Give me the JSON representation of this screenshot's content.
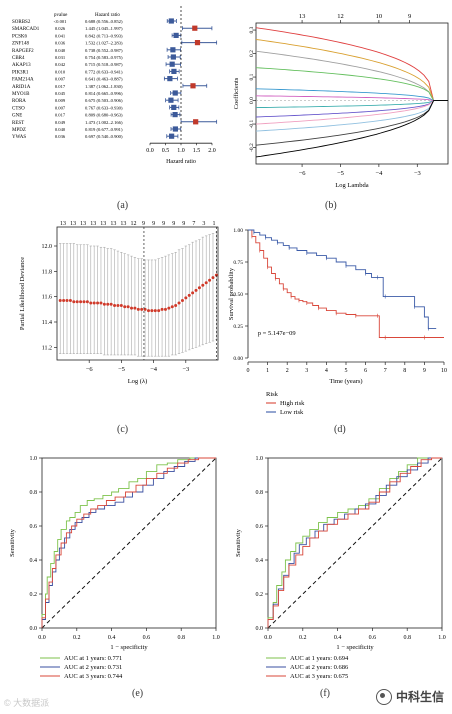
{
  "panels": {
    "a": "(a)",
    "b": "(b)",
    "c": "(c)",
    "d": "(d)",
    "e": "(e)",
    "f": "(f)"
  },
  "watermark_left": "© 大数据派",
  "watermark_right": "中科生信",
  "chart_data": [
    {
      "id": "a",
      "type": "forest",
      "col_headers": {
        "pvalue": "pvalue",
        "hr": "Hazard ratio"
      },
      "xlabel": "Hazard ratio",
      "xlim": [
        0,
        2.0
      ],
      "xticks": [
        "0.0",
        "0.5",
        "1.0",
        "1.5",
        "2.0"
      ],
      "rows": [
        {
          "gene": "SORBS2",
          "p": "<0.001",
          "hr_text": "0.688 (0.556–0.852)",
          "hr": 0.688,
          "lo": 0.556,
          "hi": 0.852
        },
        {
          "gene": "SMARCAD1",
          "p": "0.026",
          "hr_text": "1.445 (1.045–1.997)",
          "hr": 1.445,
          "lo": 1.045,
          "hi": 1.997
        },
        {
          "gene": "PCSK6",
          "p": "0.041",
          "hr_text": "0.842 (0.713–0.993)",
          "hr": 0.842,
          "lo": 0.713,
          "hi": 0.993
        },
        {
          "gene": "ZNF148",
          "p": "0.036",
          "hr_text": "1.532 (1.027–2.283)",
          "hr": 1.532,
          "lo": 1.027,
          "hi": 2.283
        },
        {
          "gene": "RAPGEF2",
          "p": "0.040",
          "hr_text": "0.738 (0.552–0.987)",
          "hr": 0.738,
          "lo": 0.552,
          "hi": 0.987
        },
        {
          "gene": "CBR4",
          "p": "0.031",
          "hr_text": "0.754 (0.583–0.975)",
          "hr": 0.754,
          "lo": 0.583,
          "hi": 0.975
        },
        {
          "gene": "AKAP13",
          "p": "0.042",
          "hr_text": "0.715 (0.518–0.987)",
          "hr": 0.715,
          "lo": 0.518,
          "hi": 0.987
        },
        {
          "gene": "PIK3R1",
          "p": "0.010",
          "hr_text": "0.772 (0.633–0.941)",
          "hr": 0.772,
          "lo": 0.633,
          "hi": 0.941
        },
        {
          "gene": "FAM214A",
          "p": "0.007",
          "hr_text": "0.641 (0.463–0.887)",
          "hr": 0.641,
          "lo": 0.463,
          "hi": 0.887
        },
        {
          "gene": "ARID1A",
          "p": "0.017",
          "hr_text": "1.387 (1.062–1.830)",
          "hr": 1.387,
          "lo": 1.062,
          "hi": 1.83
        },
        {
          "gene": "MYO1B",
          "p": "0.045",
          "hr_text": "0.814 (0.665–0.996)",
          "hr": 0.814,
          "lo": 0.665,
          "hi": 0.996
        },
        {
          "gene": "RORA",
          "p": "0.009",
          "hr_text": "0.675 (0.503–0.906)",
          "hr": 0.675,
          "lo": 0.503,
          "hi": 0.906
        },
        {
          "gene": "CTSO",
          "p": "0.007",
          "hr_text": "0.767 (0.633–0.930)",
          "hr": 0.767,
          "lo": 0.633,
          "hi": 0.93
        },
        {
          "gene": "GNE",
          "p": "0.017",
          "hr_text": "0.809 (0.680–0.963)",
          "hr": 0.809,
          "lo": 0.68,
          "hi": 0.963
        },
        {
          "gene": "REST",
          "p": "0.049",
          "hr_text": "1.473 (1.002–2.166)",
          "hr": 1.473,
          "lo": 1.002,
          "hi": 2.166
        },
        {
          "gene": "MPDZ",
          "p": "0.040",
          "hr_text": "0.819 (0.677–0.991)",
          "hr": 0.819,
          "lo": 0.677,
          "hi": 0.991
        },
        {
          "gene": "YWAS",
          "p": "0.036",
          "hr_text": "0.697 (0.540–0.900)",
          "hr": 0.697,
          "lo": 0.54,
          "hi": 0.9
        }
      ],
      "colors": {
        "protective": "#3c5a9a",
        "risk": "#c0392b"
      }
    },
    {
      "id": "b",
      "type": "line",
      "xlabel": "Log Lambda",
      "ylabel": "Coefficients",
      "xlim": [
        -7.2,
        -2.2
      ],
      "ylim": [
        -0.27,
        0.33
      ],
      "xticks": [
        -6,
        -5,
        -4,
        -3
      ],
      "yticks": [
        -0.2,
        -0.1,
        0.0,
        0.1,
        0.2,
        0.3
      ],
      "top_ticks": [
        {
          "x": -6,
          "label": "13"
        },
        {
          "x": -5,
          "label": "12"
        },
        {
          "x": -4,
          "label": "10"
        },
        {
          "x": -3.2,
          "label": "9"
        }
      ],
      "series": [
        {
          "color": "#e04040",
          "start": 0.31
        },
        {
          "color": "#d9a030",
          "start": 0.26
        },
        {
          "color": "#a0a0a0",
          "start": 0.21
        },
        {
          "color": "#66c060",
          "start": 0.14
        },
        {
          "color": "#3b9ad0",
          "start": 0.05
        },
        {
          "color": "#d060c0",
          "start": 0.02
        },
        {
          "color": "#40b0b0",
          "start": -0.03
        },
        {
          "color": "#6a5acd",
          "start": -0.07
        },
        {
          "color": "#f0a0c0",
          "start": -0.1
        },
        {
          "color": "#90c0e0",
          "start": -0.13
        },
        {
          "color": "#404040",
          "start": -0.19
        },
        {
          "color": "#000000",
          "start": -0.24
        }
      ]
    },
    {
      "id": "c",
      "type": "scatter",
      "xlabel": "Log (λ)",
      "ylabel": "Partial Likelihood Deviance",
      "xlim": [
        -7.0,
        -2.0
      ],
      "ylim": [
        11.1,
        12.15
      ],
      "xticks": [
        -6,
        -5,
        -4,
        -3
      ],
      "yticks": [
        11.2,
        11.4,
        11.6,
        11.8,
        12.0
      ],
      "top_ticks": [
        "13",
        "13",
        "13",
        "13",
        "13",
        "13",
        "13",
        "12",
        "9",
        "9",
        "9",
        "9",
        "9",
        "7",
        "3",
        "1"
      ],
      "vlines": [
        -4.3,
        -2.05
      ],
      "x_start": -6.9,
      "x_end": -2.05,
      "points_y": [
        11.57,
        11.57,
        11.57,
        11.57,
        11.56,
        11.56,
        11.56,
        11.56,
        11.56,
        11.55,
        11.55,
        11.55,
        11.55,
        11.54,
        11.54,
        11.54,
        11.53,
        11.53,
        11.53,
        11.52,
        11.52,
        11.51,
        11.51,
        11.5,
        11.5,
        11.5,
        11.49,
        11.49,
        11.49,
        11.49,
        11.5,
        11.5,
        11.51,
        11.52,
        11.53,
        11.55,
        11.57,
        11.59,
        11.61,
        11.63,
        11.65,
        11.67,
        11.69,
        11.71,
        11.73,
        11.75,
        11.77
      ],
      "err_hi": [
        12.02,
        12.02,
        12.02,
        12.02,
        12.02,
        12.01,
        12.01,
        12.01,
        12.01,
        12.0,
        12.0,
        12.0,
        11.99,
        11.99,
        11.98,
        11.98,
        11.97,
        11.96,
        11.95,
        11.94,
        11.93,
        11.92,
        11.91,
        11.9,
        11.9,
        11.89,
        11.89,
        11.89,
        11.89,
        11.9,
        11.91,
        11.92,
        11.93,
        11.94,
        11.95,
        11.97,
        11.98,
        12.0,
        12.01,
        12.03,
        12.04,
        12.05,
        12.07,
        12.08,
        12.09,
        12.1,
        12.11
      ],
      "err_lo": [
        11.15,
        11.15,
        11.15,
        11.15,
        11.15,
        11.15,
        11.15,
        11.15,
        11.15,
        11.15,
        11.15,
        11.15,
        11.15,
        11.14,
        11.14,
        11.14,
        11.14,
        11.14,
        11.14,
        11.14,
        11.14,
        11.14,
        11.14,
        11.13,
        11.13,
        11.13,
        11.13,
        11.13,
        11.13,
        11.13,
        11.13,
        11.13,
        11.13,
        11.14,
        11.14,
        11.15,
        11.16,
        11.17,
        11.18,
        11.19,
        11.2,
        11.21,
        11.22,
        11.23,
        11.24,
        11.25,
        11.26
      ],
      "point_color": "#d03a2a"
    },
    {
      "id": "d",
      "type": "line",
      "xlabel": "Time (years)",
      "ylabel": "Survival probability",
      "xlim": [
        0,
        10
      ],
      "ylim": [
        0,
        1.0
      ],
      "xticks": [
        0,
        1,
        2,
        3,
        4,
        5,
        6,
        7,
        8,
        9,
        10
      ],
      "yticks": [
        "0.00",
        "0.25",
        "0.50",
        "0.75",
        "1.00"
      ],
      "annotation": "p = 5.147e−09",
      "legend_title": "Risk",
      "series": [
        {
          "name": "High risk",
          "color": "#d9473a",
          "x": [
            0,
            0.2,
            0.4,
            0.6,
            0.8,
            1.0,
            1.2,
            1.4,
            1.6,
            1.8,
            2.0,
            2.2,
            2.4,
            2.6,
            2.8,
            3.0,
            3.3,
            3.6,
            4.0,
            4.5,
            5.0,
            5.5,
            6.0,
            6.6,
            6.7,
            7.0,
            8.0,
            9.0,
            10.0
          ],
          "y": [
            1.0,
            0.95,
            0.9,
            0.84,
            0.78,
            0.71,
            0.66,
            0.62,
            0.58,
            0.54,
            0.51,
            0.48,
            0.46,
            0.45,
            0.44,
            0.43,
            0.41,
            0.39,
            0.37,
            0.35,
            0.34,
            0.33,
            0.33,
            0.33,
            0.16,
            0.16,
            0.16,
            0.16,
            0.16
          ]
        },
        {
          "name": "Low risk",
          "color": "#3b5ba8",
          "x": [
            0,
            0.3,
            0.6,
            0.9,
            1.2,
            1.5,
            1.8,
            2.1,
            2.5,
            3.0,
            3.5,
            4.0,
            4.5,
            5.0,
            5.5,
            6.0,
            6.3,
            6.6,
            6.9,
            7.0,
            8.0,
            8.5,
            9.0,
            9.2,
            9.6
          ],
          "y": [
            1.0,
            0.98,
            0.96,
            0.94,
            0.92,
            0.9,
            0.88,
            0.86,
            0.84,
            0.82,
            0.8,
            0.78,
            0.75,
            0.72,
            0.69,
            0.66,
            0.63,
            0.63,
            0.48,
            0.48,
            0.48,
            0.4,
            0.32,
            0.23,
            0.23
          ]
        }
      ]
    },
    {
      "id": "e",
      "type": "line",
      "xlabel": "1 − specificity",
      "ylabel": "Sensitivity",
      "xlim": [
        0,
        1
      ],
      "ylim": [
        0,
        1
      ],
      "xticks": [
        "0.0",
        "0.2",
        "0.4",
        "0.6",
        "0.8",
        "1.0"
      ],
      "yticks": [
        "0.0",
        "0.2",
        "0.4",
        "0.6",
        "0.8",
        "1.0"
      ],
      "series": [
        {
          "name": "AUC at 1 years: 0.771",
          "color": "#7dc24b",
          "x": [
            0,
            0.02,
            0.03,
            0.05,
            0.07,
            0.09,
            0.11,
            0.14,
            0.16,
            0.19,
            0.22,
            0.26,
            0.3,
            0.35,
            0.4,
            0.44,
            0.5,
            0.55,
            0.6,
            0.66,
            0.72,
            0.78,
            0.85,
            0.92,
            1.0
          ],
          "y": [
            0,
            0.08,
            0.2,
            0.3,
            0.38,
            0.45,
            0.52,
            0.58,
            0.63,
            0.65,
            0.68,
            0.72,
            0.75,
            0.76,
            0.78,
            0.8,
            0.82,
            0.86,
            0.88,
            0.92,
            0.96,
            0.97,
            0.99,
            1.0,
            1.0
          ]
        },
        {
          "name": "AUC at 2 years: 0.731",
          "color": "#3a4fa0",
          "x": [
            0,
            0.02,
            0.04,
            0.06,
            0.08,
            0.1,
            0.13,
            0.16,
            0.19,
            0.23,
            0.27,
            0.31,
            0.36,
            0.42,
            0.47,
            0.52,
            0.58,
            0.64,
            0.7,
            0.76,
            0.82,
            0.88,
            0.94,
            1.0
          ],
          "y": [
            0,
            0.05,
            0.15,
            0.25,
            0.33,
            0.4,
            0.47,
            0.53,
            0.58,
            0.62,
            0.65,
            0.68,
            0.7,
            0.72,
            0.74,
            0.77,
            0.8,
            0.84,
            0.88,
            0.92,
            0.95,
            0.98,
            1.0,
            1.0
          ]
        },
        {
          "name": "AUC at 3 years: 0.744",
          "color": "#d9473a",
          "x": [
            0,
            0.02,
            0.04,
            0.06,
            0.08,
            0.11,
            0.14,
            0.17,
            0.2,
            0.24,
            0.28,
            0.32,
            0.37,
            0.42,
            0.48,
            0.54,
            0.6,
            0.66,
            0.72,
            0.78,
            0.84,
            0.9,
            0.96,
            1.0
          ],
          "y": [
            0,
            0.06,
            0.17,
            0.27,
            0.35,
            0.43,
            0.5,
            0.56,
            0.6,
            0.64,
            0.67,
            0.7,
            0.72,
            0.75,
            0.77,
            0.8,
            0.84,
            0.88,
            0.91,
            0.94,
            0.97,
            0.99,
            1.0,
            1.0
          ]
        }
      ]
    },
    {
      "id": "f",
      "type": "line",
      "xlabel": "1 − specificity",
      "ylabel": "Sensitivity",
      "xlim": [
        0,
        1
      ],
      "ylim": [
        0,
        1
      ],
      "xticks": [
        "0.0",
        "0.2",
        "0.4",
        "0.6",
        "0.8",
        "1.0"
      ],
      "yticks": [
        "0.0",
        "0.2",
        "0.4",
        "0.6",
        "0.8",
        "1.0"
      ],
      "series": [
        {
          "name": "AUC at 1 years: 0.694",
          "color": "#7dc24b",
          "x": [
            0,
            0.03,
            0.05,
            0.08,
            0.1,
            0.13,
            0.16,
            0.2,
            0.24,
            0.29,
            0.34,
            0.4,
            0.46,
            0.52,
            0.58,
            0.64,
            0.7,
            0.75,
            0.8,
            0.86,
            0.92,
            1.0
          ],
          "y": [
            0,
            0.06,
            0.15,
            0.25,
            0.33,
            0.4,
            0.45,
            0.5,
            0.54,
            0.58,
            0.62,
            0.65,
            0.68,
            0.7,
            0.72,
            0.76,
            0.82,
            0.88,
            0.92,
            0.96,
            1.0,
            1.0
          ]
        },
        {
          "name": "AUC at 2 years: 0.686",
          "color": "#3a4fa0",
          "x": [
            0,
            0.03,
            0.06,
            0.09,
            0.12,
            0.15,
            0.18,
            0.22,
            0.27,
            0.32,
            0.38,
            0.44,
            0.5,
            0.56,
            0.62,
            0.68,
            0.74,
            0.8,
            0.86,
            0.92,
            0.97,
            1.0
          ],
          "y": [
            0,
            0.05,
            0.14,
            0.23,
            0.31,
            0.38,
            0.44,
            0.49,
            0.53,
            0.57,
            0.61,
            0.64,
            0.67,
            0.7,
            0.73,
            0.78,
            0.84,
            0.89,
            0.93,
            0.97,
            1.0,
            1.0
          ]
        },
        {
          "name": "AUC at 3 years: 0.675",
          "color": "#d9473a",
          "x": [
            0,
            0.03,
            0.06,
            0.09,
            0.12,
            0.16,
            0.2,
            0.24,
            0.29,
            0.34,
            0.4,
            0.46,
            0.52,
            0.58,
            0.64,
            0.7,
            0.76,
            0.82,
            0.88,
            0.94,
            1.0
          ],
          "y": [
            0,
            0.05,
            0.13,
            0.22,
            0.3,
            0.37,
            0.43,
            0.48,
            0.53,
            0.57,
            0.61,
            0.64,
            0.67,
            0.7,
            0.74,
            0.8,
            0.86,
            0.91,
            0.95,
            0.99,
            1.0
          ]
        }
      ]
    }
  ]
}
